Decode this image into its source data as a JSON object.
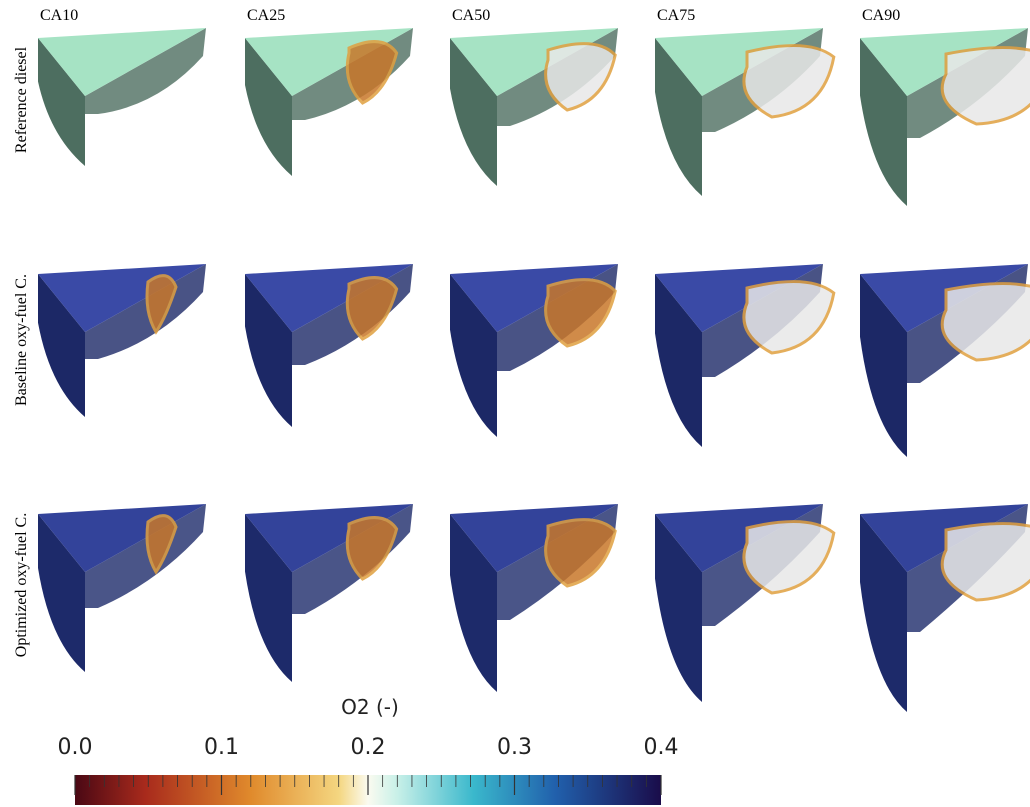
{
  "columns": [
    "CA10",
    "CA25",
    "CA50",
    "CA75",
    "CA90"
  ],
  "rows": [
    "Reference diesel",
    "Baseline oxy-fuel C.",
    "Optimized oxy-fuel C."
  ],
  "colorbar": {
    "title": "O2 (-)",
    "lim": [
      0,
      0.4
    ],
    "ticks": [
      {
        "value": 0,
        "label": "0.0"
      },
      0.1,
      0.2,
      0.3,
      0.4
    ]
  }
}
